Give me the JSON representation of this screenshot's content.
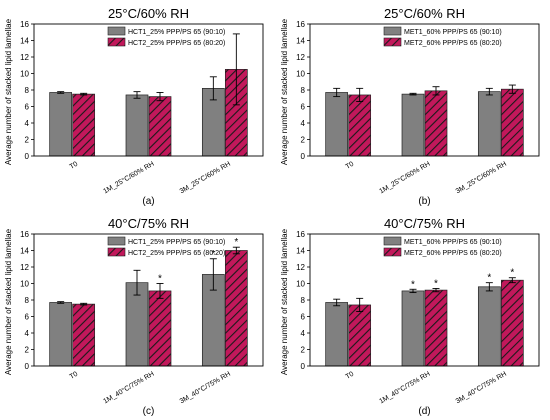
{
  "chart_data": [
    {
      "type": "bar",
      "title": "25°C/60% RH",
      "caption": "(a)",
      "ylabel": "Average number of stacked lipid lamellae",
      "ylim": [
        0,
        16
      ],
      "yticks": [
        "0",
        "2",
        "4",
        "6",
        "8",
        "10",
        "12",
        "14",
        "16"
      ],
      "categories": [
        "T0",
        "1M_25°C/60% RH",
        "3M_25°C/60% RH"
      ],
      "legend_position": "top-right",
      "series": [
        {
          "name": "HCT1_25% PPP/PS 65 (90:10)",
          "color": "#808080",
          "pattern": "solid",
          "values": [
            7.7,
            7.4,
            8.2
          ],
          "errors": [
            0.1,
            0.4,
            1.4
          ],
          "stars": [
            false,
            false,
            false
          ]
        },
        {
          "name": "HCT2_25% PPP/PS 65 (80:20)",
          "color": "#c2185b",
          "pattern": "hatched",
          "values": [
            7.5,
            7.2,
            10.5
          ],
          "errors": [
            0.1,
            0.5,
            4.3
          ],
          "stars": [
            false,
            false,
            false
          ]
        }
      ]
    },
    {
      "type": "bar",
      "title": "25°C/60% RH",
      "caption": "(b)",
      "ylabel": "Average number of stacked lipid lamellae",
      "ylim": [
        0,
        16
      ],
      "yticks": [
        "0",
        "2",
        "4",
        "6",
        "8",
        "10",
        "12",
        "14",
        "16"
      ],
      "categories": [
        "T0",
        "1M_25°C/60% RH",
        "3M_25°C/60% RH"
      ],
      "legend_position": "top-right",
      "series": [
        {
          "name": "MET1_60% PPP/PS 65 (90:10)",
          "color": "#808080",
          "pattern": "solid",
          "values": [
            7.7,
            7.5,
            7.8
          ],
          "errors": [
            0.5,
            0.1,
            0.4
          ],
          "stars": [
            false,
            false,
            false
          ]
        },
        {
          "name": "MET2_60% PPP/PS 65 (80:20)",
          "color": "#c2185b",
          "pattern": "hatched",
          "values": [
            7.4,
            7.9,
            8.1
          ],
          "errors": [
            0.8,
            0.5,
            0.5
          ],
          "stars": [
            false,
            false,
            false
          ]
        }
      ]
    },
    {
      "type": "bar",
      "title": "40°C/75% RH",
      "caption": "(c)",
      "ylabel": "Average number of stacked lipid lamellae",
      "ylim": [
        0,
        16
      ],
      "yticks": [
        "0",
        "2",
        "4",
        "6",
        "8",
        "10",
        "12",
        "14",
        "16"
      ],
      "categories": [
        "T0",
        "1M_40°C/75% RH",
        "3M_40°C/75% RH"
      ],
      "legend_position": "top-right",
      "star_symbol": "*",
      "series": [
        {
          "name": "HCT1_25% PPP/PS 65 (90:10)",
          "color": "#808080",
          "pattern": "solid",
          "values": [
            7.7,
            10.1,
            11.1
          ],
          "errors": [
            0.1,
            1.5,
            1.9
          ],
          "stars": [
            false,
            false,
            true
          ]
        },
        {
          "name": "HCT2_25% PPP/PS 65 (80:20)",
          "color": "#c2185b",
          "pattern": "hatched",
          "values": [
            7.5,
            9.1,
            14.0
          ],
          "errors": [
            0.1,
            0.9,
            0.4
          ],
          "stars": [
            false,
            true,
            true
          ]
        }
      ]
    },
    {
      "type": "bar",
      "title": "40°C/75% RH",
      "caption": "(d)",
      "ylabel": "Average number of stacked lipid lamellae",
      "ylim": [
        0,
        16
      ],
      "yticks": [
        "0",
        "2",
        "4",
        "6",
        "8",
        "10",
        "12",
        "14",
        "16"
      ],
      "categories": [
        "T0",
        "1M_40°C/75% RH",
        "3M_40°C/75% RH"
      ],
      "legend_position": "top-right",
      "star_symbol": "*",
      "series": [
        {
          "name": "MET1_60% PPP/PS 65 (90:10)",
          "color": "#808080",
          "pattern": "solid",
          "values": [
            7.7,
            9.1,
            9.6
          ],
          "errors": [
            0.4,
            0.2,
            0.5
          ],
          "stars": [
            false,
            true,
            true
          ]
        },
        {
          "name": "MET2_60% PPP/PS 65 (80:20)",
          "color": "#c2185b",
          "pattern": "hatched",
          "values": [
            7.4,
            9.2,
            10.4
          ],
          "errors": [
            0.8,
            0.2,
            0.3
          ],
          "stars": [
            false,
            true,
            true
          ]
        }
      ]
    }
  ]
}
